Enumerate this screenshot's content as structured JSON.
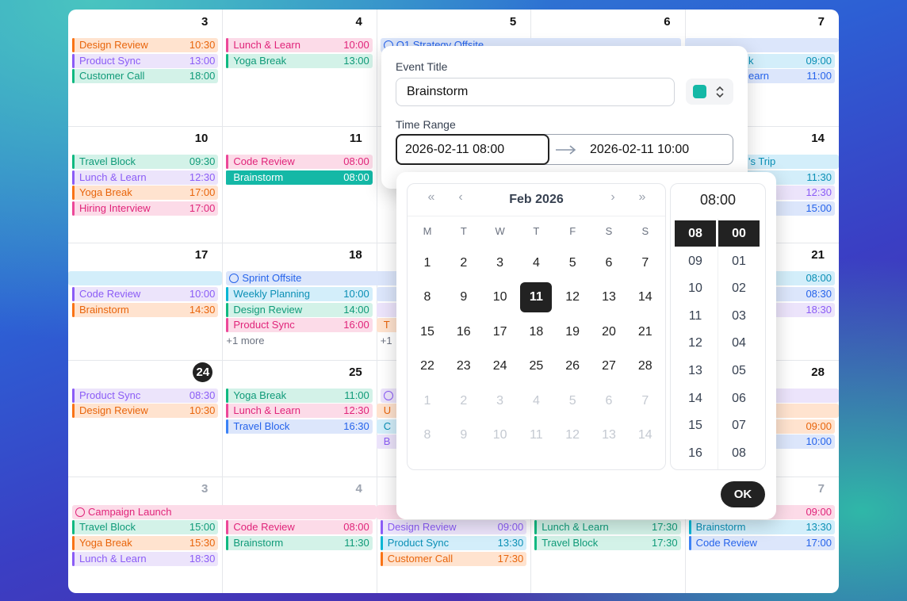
{
  "calendar": {
    "today": "24",
    "weeks": [
      {
        "days": [
          {
            "day": "3",
            "events": [
              {
                "title": "Design Review",
                "time": "10:30",
                "color": "orange"
              },
              {
                "title": "Product Sync",
                "time": "13:00",
                "color": "purple"
              },
              {
                "title": "Customer Call",
                "time": "18:00",
                "color": "green"
              }
            ]
          },
          {
            "day": "4",
            "events": [
              {
                "title": "Lunch & Learn",
                "time": "10:00",
                "color": "pink"
              },
              {
                "title": "Yoga Break",
                "time": "13:00",
                "color": "green"
              }
            ]
          },
          {
            "day": "5",
            "events": [
              {
                "title": "Q1 Strategy Offsite",
                "color": "blue",
                "icon": true
              }
            ]
          },
          {
            "day": "6",
            "events": []
          },
          {
            "day": "7",
            "events": [
              {
                "color": "blue"
              },
              {
                "title": "k",
                "time": "09:00",
                "color": "sky"
              },
              {
                "title": "earn",
                "time": "11:00",
                "color": "blue"
              }
            ]
          }
        ]
      },
      {
        "days": [
          {
            "day": "10",
            "events": [
              {
                "title": "Travel Block",
                "time": "09:30",
                "color": "green"
              },
              {
                "title": "Lunch & Learn",
                "time": "12:30",
                "color": "purple"
              },
              {
                "title": "Yoga Break",
                "time": "17:00",
                "color": "orange"
              },
              {
                "title": "Hiring Interview",
                "time": "17:00",
                "color": "pink"
              }
            ]
          },
          {
            "day": "11",
            "events": [
              {
                "title": "Code Review",
                "time": "08:00",
                "color": "pink"
              },
              {
                "title": "Brainstorm",
                "time": "08:00",
                "color": "teal",
                "selected": true
              }
            ]
          },
          {
            "events": []
          },
          {
            "events": []
          },
          {
            "day": "14",
            "events": [
              {
                "title": "'s Trip",
                "color": "sky"
              },
              {
                "time": "11:30",
                "color": "sky"
              },
              {
                "time": "12:30",
                "color": "purple"
              },
              {
                "time": "15:00",
                "color": "blue"
              }
            ]
          }
        ]
      },
      {
        "days": [
          {
            "day": "17",
            "events": [
              {
                "color": "sky"
              },
              {
                "title": "Code Review",
                "time": "10:00",
                "color": "purple"
              },
              {
                "title": "Brainstorm",
                "time": "14:30",
                "color": "orange"
              }
            ]
          },
          {
            "day": "18",
            "events": [
              {
                "title": "Sprint Offsite",
                "color": "blue",
                "icon": true
              },
              {
                "title": "Weekly Planning",
                "time": "10:00",
                "color": "sky"
              },
              {
                "title": "Design Review",
                "time": "14:00",
                "color": "green"
              },
              {
                "title": "Product Sync",
                "time": "16:00",
                "color": "pink"
              }
            ],
            "more": "+1 more"
          },
          {
            "events": [
              {
                "color": "blue"
              },
              {
                "color": "blue"
              },
              {
                "color": "purple"
              },
              {
                "title": "T",
                "color": "orange"
              }
            ],
            "more": "+1"
          },
          {
            "events": []
          },
          {
            "day": "21",
            "events": [
              {
                "time": "08:00",
                "color": "sky"
              },
              {
                "time": "08:30",
                "color": "blue"
              },
              {
                "time": "18:30",
                "color": "purple"
              }
            ]
          }
        ]
      },
      {
        "days": [
          {
            "day": "24",
            "events": [
              {
                "title": "Product Sync",
                "time": "08:30",
                "color": "purple"
              },
              {
                "title": "Design Review",
                "time": "10:30",
                "color": "orange"
              }
            ]
          },
          {
            "day": "25",
            "events": [
              {
                "title": "Yoga Break",
                "time": "11:00",
                "color": "green"
              },
              {
                "title": "Lunch & Learn",
                "time": "12:30",
                "color": "pink"
              },
              {
                "title": "Travel Block",
                "time": "16:30",
                "color": "blue"
              }
            ]
          },
          {
            "events": [
              {
                "color": "purple",
                "icon": true
              },
              {
                "title": "U",
                "color": "orange"
              },
              {
                "title": "C",
                "color": "sky"
              },
              {
                "title": "B",
                "color": "purple"
              }
            ]
          },
          {
            "events": []
          },
          {
            "day": "28",
            "events": [
              {
                "color": "purple"
              },
              {
                "color": "orange"
              },
              {
                "time": "09:00",
                "color": "orange"
              },
              {
                "time": "10:00",
                "color": "blue"
              }
            ]
          }
        ]
      },
      {
        "other_month": true,
        "days": [
          {
            "day": "3",
            "events": [
              {
                "title": "Campaign Launch",
                "color": "pink",
                "icon": true
              },
              {
                "title": "Travel Block",
                "time": "15:00",
                "color": "green"
              },
              {
                "title": "Yoga Break",
                "time": "15:30",
                "color": "orange"
              },
              {
                "title": "Lunch & Learn",
                "time": "18:30",
                "color": "purple"
              }
            ]
          },
          {
            "day": "4",
            "events": [
              {
                "color": "pink"
              },
              {
                "title": "Code Review",
                "time": "08:00",
                "color": "pink"
              },
              {
                "title": "Brainstorm",
                "time": "11:30",
                "color": "green"
              }
            ]
          },
          {
            "day": "5",
            "events": [
              {
                "color": "pink"
              },
              {
                "title": "Design Review",
                "time": "09:00",
                "color": "purple"
              },
              {
                "title": "Product Sync",
                "time": "13:30",
                "color": "sky"
              },
              {
                "title": "Customer Call",
                "time": "17:30",
                "color": "orange"
              }
            ]
          },
          {
            "events": [
              {
                "color": "pink"
              },
              {
                "title": "Lunch & Learn",
                "time": "17:30",
                "color": "green"
              },
              {
                "title": "Travel Block",
                "time": "17:30",
                "color": "green"
              }
            ]
          },
          {
            "day": "7",
            "events": [
              {
                "time": "09:00",
                "color": "pink"
              },
              {
                "title": "Brainstorm",
                "time": "13:30",
                "color": "sky"
              },
              {
                "title": "Code Review",
                "time": "17:00",
                "color": "blue"
              }
            ]
          }
        ]
      }
    ]
  },
  "event_form": {
    "title_label": "Event Title",
    "title_value": "Brainstorm",
    "color": "#14b8a6",
    "time_range_label": "Time Range",
    "start": "2026-02-11 08:00",
    "end": "2026-02-11 10:00"
  },
  "date_picker": {
    "prev_year": "«",
    "prev_month": "‹",
    "month": "Feb 2026",
    "next_month": "›",
    "next_year": "»",
    "weekdays": [
      "M",
      "T",
      "W",
      "T",
      "F",
      "S",
      "S"
    ],
    "days": [
      [
        "1",
        "2",
        "3",
        "4",
        "5",
        "6",
        "7"
      ],
      [
        "8",
        "9",
        "10",
        "11",
        "12",
        "13",
        "14"
      ],
      [
        "15",
        "16",
        "17",
        "18",
        "19",
        "20",
        "21"
      ],
      [
        "22",
        "23",
        "24",
        "25",
        "26",
        "27",
        "28"
      ]
    ],
    "other_month_days": [
      [
        "1",
        "2",
        "3",
        "4",
        "5",
        "6",
        "7"
      ],
      [
        "8",
        "9",
        "10",
        "11",
        "12",
        "13",
        "14"
      ]
    ],
    "selected_day": "11",
    "time": "08:00",
    "hours": [
      "08",
      "09",
      "10",
      "11",
      "12",
      "13",
      "14",
      "15",
      "16"
    ],
    "minutes": [
      "00",
      "01",
      "02",
      "03",
      "04",
      "05",
      "06",
      "07",
      "08"
    ],
    "selected_hour": "08",
    "selected_minute": "00",
    "ok": "OK"
  }
}
